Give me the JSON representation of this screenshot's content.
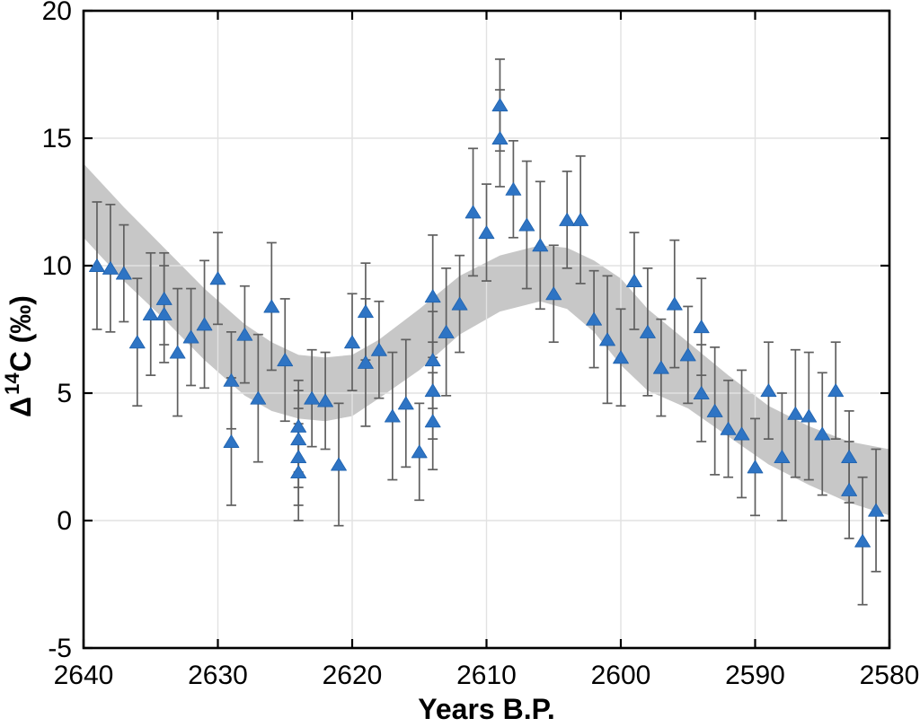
{
  "chart_data": {
    "type": "scatter",
    "title": "",
    "xlabel": "Years B.P.",
    "ylabel": {
      "delta": "Δ",
      "superscript": "14",
      "rest": "C (‰)"
    },
    "x_axis_reversed": true,
    "xlim": [
      2640,
      2580
    ],
    "ylim": [
      -5,
      20
    ],
    "x_ticks": [
      2640,
      2630,
      2620,
      2610,
      2600,
      2590,
      2580
    ],
    "y_ticks": [
      -5,
      0,
      5,
      10,
      15,
      20
    ],
    "grid": true,
    "legend": "none",
    "marker_shape": "triangle-up",
    "colors": {
      "marker": "#2e74c4",
      "marker_edge": "#1e61ad",
      "error_bar": "#5f5f5f",
      "band": "#c7c7c7",
      "grid_on_white": "#e2e2e2",
      "axis": "#000000",
      "background": "#ffffff"
    },
    "band": {
      "name": "smoothed-curve-uncertainty-band",
      "years": [
        2640,
        2637,
        2634,
        2631,
        2628,
        2626,
        2624,
        2622,
        2620,
        2618,
        2615,
        2612,
        2609,
        2606,
        2604,
        2602,
        2600,
        2598,
        2595,
        2592,
        2589,
        2586,
        2583,
        2580
      ],
      "top": [
        14.0,
        12.3,
        10.7,
        9.1,
        7.7,
        7.0,
        6.5,
        6.4,
        6.5,
        7.1,
        8.3,
        9.6,
        10.4,
        10.8,
        10.7,
        10.2,
        9.5,
        8.3,
        7.0,
        5.7,
        4.5,
        3.7,
        3.1,
        2.8
      ],
      "bottom": [
        11.1,
        9.4,
        7.9,
        6.3,
        4.9,
        4.3,
        4.0,
        3.9,
        4.1,
        4.8,
        5.9,
        7.3,
        8.2,
        8.6,
        8.3,
        7.4,
        6.1,
        5.1,
        4.4,
        3.3,
        2.2,
        1.4,
        0.7,
        0.2
      ]
    },
    "points": {
      "columns": [
        "year_bp",
        "delta14c_permil",
        "uncertainty"
      ],
      "rows": [
        [
          2639,
          10.0,
          2.5
        ],
        [
          2638,
          9.9,
          2.5
        ],
        [
          2637,
          9.7,
          1.9
        ],
        [
          2636,
          7.0,
          2.5
        ],
        [
          2635,
          8.1,
          2.4
        ],
        [
          2634,
          8.7,
          1.8
        ],
        [
          2634,
          8.1,
          1.9
        ],
        [
          2633,
          6.6,
          2.5
        ],
        [
          2632,
          7.2,
          1.9
        ],
        [
          2631,
          7.7,
          2.5
        ],
        [
          2630,
          9.5,
          1.8
        ],
        [
          2629,
          5.5,
          1.9
        ],
        [
          2629,
          3.1,
          2.5
        ],
        [
          2628,
          7.3,
          1.9
        ],
        [
          2627,
          4.8,
          2.5
        ],
        [
          2626,
          8.4,
          2.5
        ],
        [
          2625,
          6.3,
          2.4
        ],
        [
          2624,
          3.7,
          1.8
        ],
        [
          2624,
          3.2,
          1.9
        ],
        [
          2624,
          2.5,
          1.9
        ],
        [
          2624,
          1.9,
          1.9
        ],
        [
          2623,
          4.8,
          1.9
        ],
        [
          2622,
          4.7,
          1.9
        ],
        [
          2621,
          2.2,
          2.4
        ],
        [
          2620,
          7.0,
          1.9
        ],
        [
          2619,
          8.2,
          1.9
        ],
        [
          2619,
          6.2,
          2.5
        ],
        [
          2618,
          6.7,
          1.9
        ],
        [
          2617,
          4.1,
          2.5
        ],
        [
          2616,
          4.6,
          2.5
        ],
        [
          2615,
          2.7,
          1.9
        ],
        [
          2614,
          8.8,
          2.4
        ],
        [
          2614,
          6.3,
          1.9
        ],
        [
          2614,
          5.1,
          1.9
        ],
        [
          2614,
          3.9,
          1.9
        ],
        [
          2613,
          7.4,
          2.5
        ],
        [
          2612,
          8.5,
          1.9
        ],
        [
          2611,
          12.1,
          2.5
        ],
        [
          2610,
          11.3,
          1.9
        ],
        [
          2609,
          16.3,
          1.8
        ],
        [
          2609,
          15.0,
          1.9
        ],
        [
          2608,
          13.0,
          1.9
        ],
        [
          2607,
          11.6,
          2.5
        ],
        [
          2606,
          10.8,
          2.5
        ],
        [
          2605,
          8.9,
          1.9
        ],
        [
          2604,
          11.8,
          1.9
        ],
        [
          2603,
          11.8,
          2.5
        ],
        [
          2602,
          7.9,
          1.9
        ],
        [
          2601,
          7.1,
          2.5
        ],
        [
          2600,
          6.4,
          1.9
        ],
        [
          2599,
          9.4,
          1.9
        ],
        [
          2598,
          7.4,
          2.5
        ],
        [
          2597,
          6.0,
          1.9
        ],
        [
          2596,
          8.5,
          2.5
        ],
        [
          2595,
          6.5,
          1.9
        ],
        [
          2594,
          7.6,
          1.9
        ],
        [
          2594,
          5.0,
          1.9
        ],
        [
          2593,
          4.3,
          2.5
        ],
        [
          2592,
          3.6,
          1.9
        ],
        [
          2591,
          3.4,
          2.5
        ],
        [
          2590,
          2.1,
          1.9
        ],
        [
          2589,
          5.1,
          1.9
        ],
        [
          2588,
          2.5,
          2.5
        ],
        [
          2587,
          4.2,
          2.5
        ],
        [
          2586,
          4.1,
          2.5
        ],
        [
          2585,
          3.4,
          2.4
        ],
        [
          2584,
          5.1,
          1.9
        ],
        [
          2583,
          2.5,
          1.8
        ],
        [
          2583,
          1.2,
          1.9
        ],
        [
          2582,
          -0.8,
          2.5
        ],
        [
          2581,
          0.4,
          2.4
        ]
      ]
    }
  }
}
